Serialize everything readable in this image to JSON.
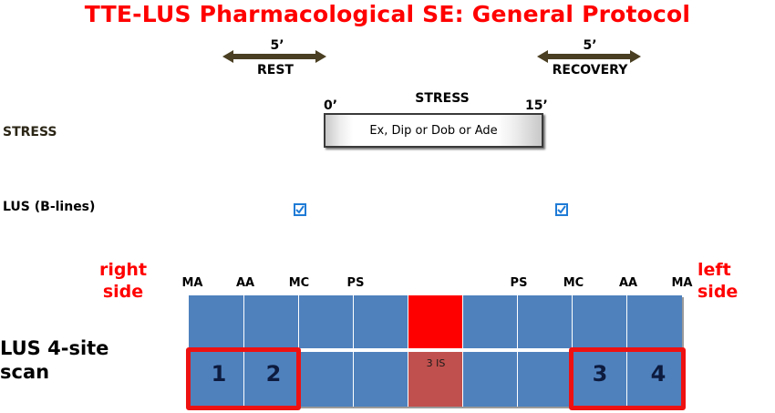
{
  "title": "TTE-LUS Pharmacological SE: General Protocol",
  "timeline": {
    "rest_minutes": "5’",
    "rest_label": "REST",
    "recovery_minutes": "5’",
    "recovery_label": "RECOVERY",
    "stress_label": "STRESS",
    "stress_start": "0’",
    "stress_end": "15’",
    "stress_agents": "Ex, Dip or Dob or Ade"
  },
  "rows": {
    "stress": "STRESS",
    "lus": "LUS (B-lines)"
  },
  "sides": {
    "right": "right side",
    "left": "left side"
  },
  "scan": {
    "label": "LUS 4-site scan",
    "headers": [
      "MA",
      "AA",
      "MC",
      "PS",
      "PS",
      "MC",
      "AA",
      "MA"
    ],
    "center_label": "3 IS",
    "sites": [
      "1",
      "2",
      "3",
      "4"
    ]
  },
  "colors": {
    "title": "#ff0000",
    "cell_blue": "#4f81bd",
    "center_top": "#ff0000",
    "center_bottom": "#c0504d",
    "highlight": "#ee1111",
    "checkbox": "#1f7bd6"
  },
  "icons": {
    "rest_arrow": "double-arrow-icon",
    "recovery_arrow": "double-arrow-icon",
    "checkbox": "checked-box-icon"
  }
}
